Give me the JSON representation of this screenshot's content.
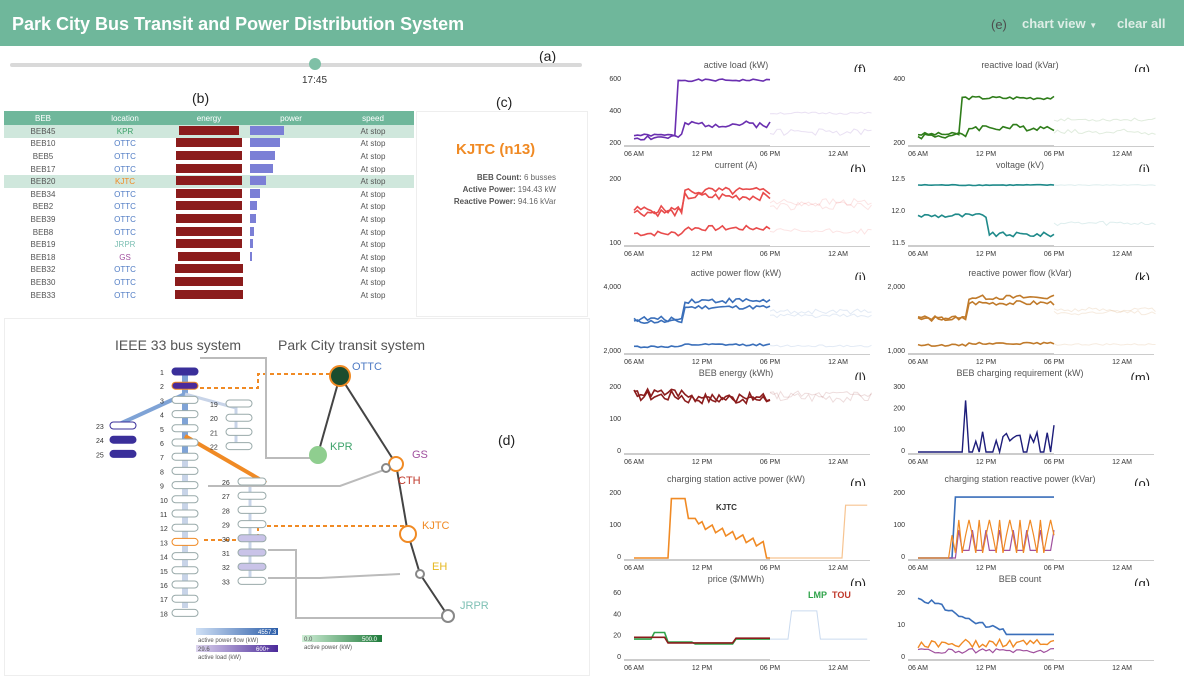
{
  "header": {
    "title": "Park City Bus Transit and Power Distribution System",
    "label_e": "(e)",
    "chart_view": "chart view",
    "clear_all": "clear all"
  },
  "labels": {
    "a": "(a)",
    "b": "(b)",
    "c": "(c)",
    "d": "(d)"
  },
  "slider": {
    "time": "17:45",
    "position_pct": 54
  },
  "table": {
    "columns": [
      "BEB",
      "location",
      "energy",
      "power",
      "speed"
    ],
    "rows": [
      {
        "beb": "BEB45",
        "loc": "KPR",
        "loc_color": "#3ea36b",
        "energy": 0.74,
        "power": 0.42,
        "speed": "At stop",
        "selected": true
      },
      {
        "beb": "BEB10",
        "loc": "OTTC",
        "loc_color": "#4f7bc4",
        "energy": 0.8,
        "power": 0.36,
        "speed": "At stop",
        "selected": false
      },
      {
        "beb": "BEB5",
        "loc": "OTTC",
        "loc_color": "#4f7bc4",
        "energy": 0.8,
        "power": 0.3,
        "speed": "At stop",
        "selected": false
      },
      {
        "beb": "BEB17",
        "loc": "OTTC",
        "loc_color": "#4f7bc4",
        "energy": 0.8,
        "power": 0.28,
        "speed": "At stop",
        "selected": false
      },
      {
        "beb": "BEB20",
        "loc": "KJTC",
        "loc_color": "#f08a24",
        "energy": 0.8,
        "power": 0.2,
        "speed": "At stop",
        "selected": true
      },
      {
        "beb": "BEB34",
        "loc": "OTTC",
        "loc_color": "#4f7bc4",
        "energy": 0.8,
        "power": 0.12,
        "speed": "At stop",
        "selected": false
      },
      {
        "beb": "BEB2",
        "loc": "OTTC",
        "loc_color": "#4f7bc4",
        "energy": 0.8,
        "power": 0.08,
        "speed": "At stop",
        "selected": false
      },
      {
        "beb": "BEB39",
        "loc": "OTTC",
        "loc_color": "#4f7bc4",
        "energy": 0.8,
        "power": 0.07,
        "speed": "At stop",
        "selected": false
      },
      {
        "beb": "BEB8",
        "loc": "OTTC",
        "loc_color": "#4f7bc4",
        "energy": 0.8,
        "power": 0.05,
        "speed": "At stop",
        "selected": false
      },
      {
        "beb": "BEB19",
        "loc": "JRPR",
        "loc_color": "#7ec0b4",
        "energy": 0.8,
        "power": 0.04,
        "speed": "At stop",
        "selected": false
      },
      {
        "beb": "BEB18",
        "loc": "GS",
        "loc_color": "#a0509e",
        "energy": 0.76,
        "power": 0.02,
        "speed": "At stop",
        "selected": false
      },
      {
        "beb": "BEB32",
        "loc": "OTTC",
        "loc_color": "#4f7bc4",
        "energy": 0.82,
        "power": 0.0,
        "speed": "At stop",
        "selected": false
      },
      {
        "beb": "BEB30",
        "loc": "OTTC",
        "loc_color": "#4f7bc4",
        "energy": 0.82,
        "power": 0.0,
        "speed": "At stop",
        "selected": false
      },
      {
        "beb": "BEB33",
        "loc": "OTTC",
        "loc_color": "#4f7bc4",
        "energy": 0.82,
        "power": 0.0,
        "speed": "At stop",
        "selected": false
      }
    ]
  },
  "station": {
    "name": "KJTC (n13)",
    "count_label": "BEB Count:",
    "count": "6 busses",
    "active_label": "Active Power:",
    "active": "194.43 kW",
    "reactive_label": "Reactive Power:",
    "reactive": "94.16 kVar"
  },
  "network": {
    "ieee_title": "IEEE 33 bus system",
    "transit_title": "Park City transit system",
    "stations": [
      {
        "name": "OTTC",
        "color": "#4f7bc4"
      },
      {
        "name": "KPR",
        "color": "#3ea36b"
      },
      {
        "name": "GS",
        "color": "#a0509e"
      },
      {
        "name": "CTH",
        "color": "#c0392b"
      },
      {
        "name": "KJTC",
        "color": "#f08a24"
      },
      {
        "name": "EH",
        "color": "#e6b820"
      },
      {
        "name": "JRPR",
        "color": "#7ec0b4"
      }
    ],
    "legend": {
      "apf_max": "4557.3",
      "apf_label": "active power flow (kW)",
      "al_min": "29.6",
      "al_max": "600+",
      "al_label": "active load (kW)",
      "ap_min": "0.0",
      "ap_max": "500.0",
      "ap_label": "active power (kW)"
    }
  },
  "colors": {
    "header": "#6fb79b",
    "purple": "#6a2fb0",
    "green": "#2f7d1a",
    "red": "#e84b4b",
    "teal": "#1f8a8a",
    "blue": "#3a6fba",
    "brown": "#c07a2a",
    "darkred": "#8b1c1c",
    "navy": "#1d1d7a",
    "orange": "#f08a24"
  },
  "xticks": [
    "06 AM",
    "12 PM",
    "06 PM",
    "12 AM"
  ],
  "charts": [
    {
      "id": "f",
      "title": "active load (kW)",
      "yticks": [
        "600",
        "400",
        "200"
      ]
    },
    {
      "id": "g",
      "title": "reactive load (kVar)",
      "yticks": [
        "400",
        "200"
      ]
    },
    {
      "id": "h",
      "title": "current (A)",
      "yticks": [
        "200",
        "100"
      ]
    },
    {
      "id": "i",
      "title": "voltage (kV)",
      "yticks": [
        "12.5",
        "12.0",
        "11.5"
      ]
    },
    {
      "id": "j",
      "title": "active power flow (kW)",
      "yticks": [
        "4,000",
        "2,000"
      ]
    },
    {
      "id": "k",
      "title": "reactive power flow (kVar)",
      "yticks": [
        "2,000",
        "1,000"
      ]
    },
    {
      "id": "l",
      "title": "BEB energy (kWh)",
      "yticks": [
        "200",
        "100",
        "0"
      ]
    },
    {
      "id": "m",
      "title": "BEB charging requirement (kW)",
      "yticks": [
        "300",
        "200",
        "100",
        "0"
      ]
    },
    {
      "id": "n",
      "title": "charging station active power (kW)",
      "yticks": [
        "200",
        "100",
        "0"
      ],
      "annotation": "KJTC"
    },
    {
      "id": "o",
      "title": "charging station reactive power (kVar)",
      "yticks": [
        "200",
        "100",
        "0"
      ]
    },
    {
      "id": "p",
      "title": "price ($/MWh)",
      "yticks": [
        "60",
        "40",
        "20",
        "0"
      ],
      "legend_lmp": "LMP",
      "legend_tou": "TOU"
    },
    {
      "id": "q",
      "title": "BEB count",
      "yticks": [
        "20",
        "10",
        "0"
      ]
    }
  ]
}
